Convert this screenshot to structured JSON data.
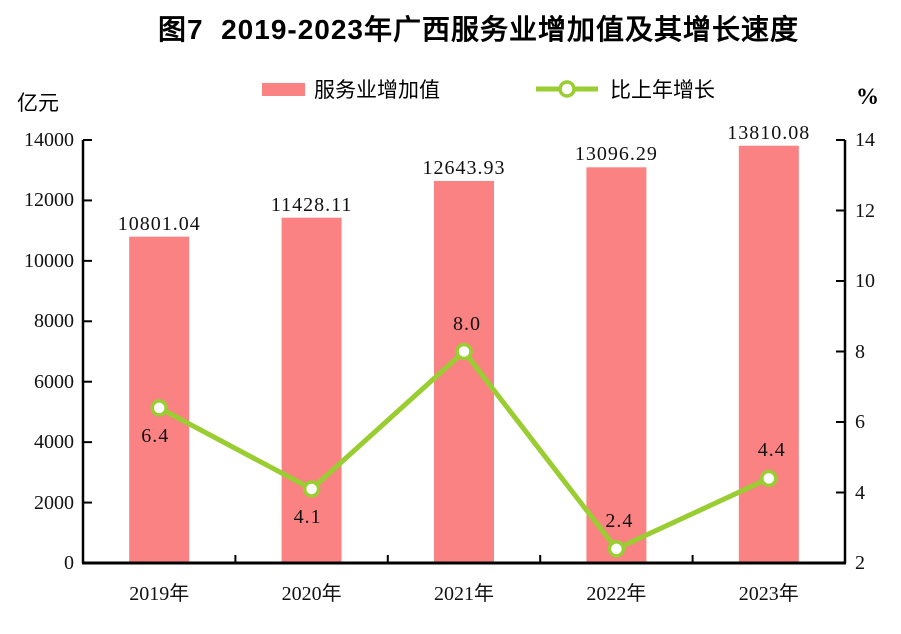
{
  "title": "图7  2019-2023年广西服务业增加值及其增长速度",
  "left_axis_unit": "亿元",
  "right_axis_unit": "%",
  "legend": {
    "bar_label": "服务业增加值",
    "line_label": "比上年增长"
  },
  "colors": {
    "bar": "#FA8282",
    "line": "#9ACD32",
    "marker_fill": "#FFFFFF",
    "axis": "#000000",
    "text": "#111111"
  },
  "chart_data": {
    "type": "bar+line combo",
    "title": "图7  2019-2023年广西服务业增加值及其增长速度",
    "categories": [
      "2019年",
      "2020年",
      "2021年",
      "2022年",
      "2023年"
    ],
    "series": [
      {
        "name": "服务业增加值",
        "type": "bar",
        "axis": "left",
        "unit": "亿元",
        "values": [
          10801.04,
          11428.11,
          12643.93,
          13096.29,
          13810.08
        ],
        "labels": [
          "10801.04",
          "11428.11",
          "12643.93",
          "13096.29",
          "13810.08"
        ]
      },
      {
        "name": "比上年增长",
        "type": "line",
        "axis": "right",
        "unit": "%",
        "values": [
          6.4,
          4.1,
          8.0,
          2.4,
          4.4
        ],
        "labels": [
          "6.4",
          "4.1",
          "8.0",
          "2.4",
          "4.4"
        ],
        "label_placement": [
          "below",
          "below",
          "above",
          "above",
          "above"
        ]
      }
    ],
    "left_axis": {
      "min": 0,
      "max": 14000,
      "ticks": [
        0,
        2000,
        4000,
        6000,
        8000,
        10000,
        12000,
        14000
      ]
    },
    "right_axis": {
      "min": 2,
      "max": 14,
      "ticks": [
        2,
        4,
        6,
        8,
        10,
        12,
        14
      ]
    },
    "grid": false,
    "legend_position": "top"
  }
}
